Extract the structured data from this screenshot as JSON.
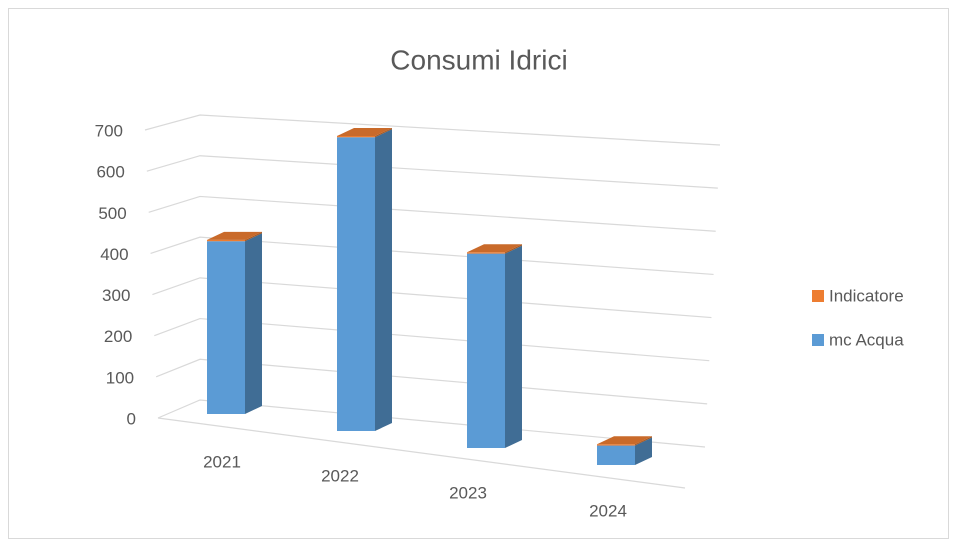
{
  "chart_data": {
    "type": "bar3d_stacked",
    "title": "Consumi Idrici",
    "categories": [
      "2021",
      "2022",
      "2023",
      "2024"
    ],
    "series": [
      {
        "name": "mc Acqua",
        "color": "#5b9bd5",
        "values": [
          400,
          680,
          450,
          45
        ]
      },
      {
        "name": "Indicatore",
        "color": "#ed7d31",
        "values": [
          3,
          3,
          3,
          3
        ]
      }
    ],
    "ylim": [
      0,
      700
    ],
    "yticks": [
      0,
      100,
      200,
      300,
      400,
      500,
      600,
      700
    ],
    "grid": true,
    "legend": "right"
  }
}
